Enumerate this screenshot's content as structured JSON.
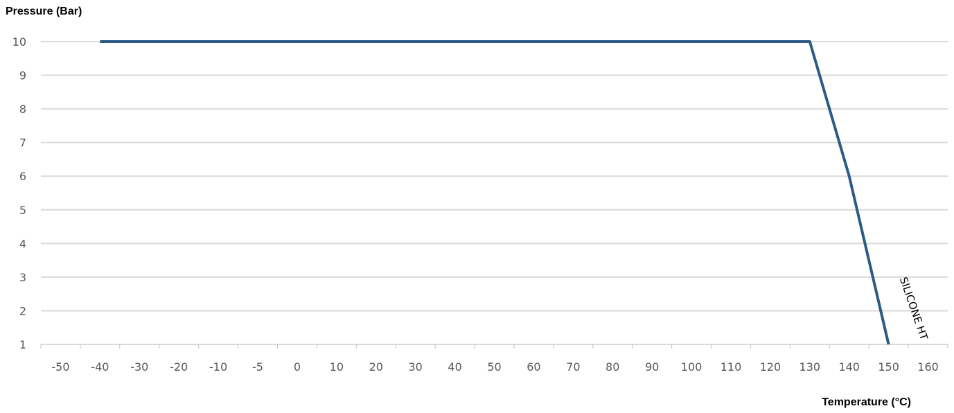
{
  "chart_data": {
    "type": "line",
    "ylabel": "Pressure (Bar)",
    "xlabel": "Temperature (°C)",
    "categories": [
      "-50",
      "-40",
      "-30",
      "-20",
      "-10",
      "-5",
      "0",
      "10",
      "20",
      "30",
      "40",
      "50",
      "60",
      "70",
      "80",
      "90",
      "100",
      "110",
      "120",
      "130",
      "140",
      "150",
      "160"
    ],
    "yticks": [
      1,
      2,
      3,
      4,
      5,
      6,
      7,
      8,
      9,
      10
    ],
    "ylim": [
      1,
      10
    ],
    "grid": true,
    "series": [
      {
        "name": "SILICONE HT",
        "color": "#2d5a86",
        "points": [
          {
            "x": "-40",
            "y": 10
          },
          {
            "x": "130",
            "y": 10
          },
          {
            "x": "140",
            "y": 6
          },
          {
            "x": "150",
            "y": 1
          }
        ]
      }
    ]
  }
}
